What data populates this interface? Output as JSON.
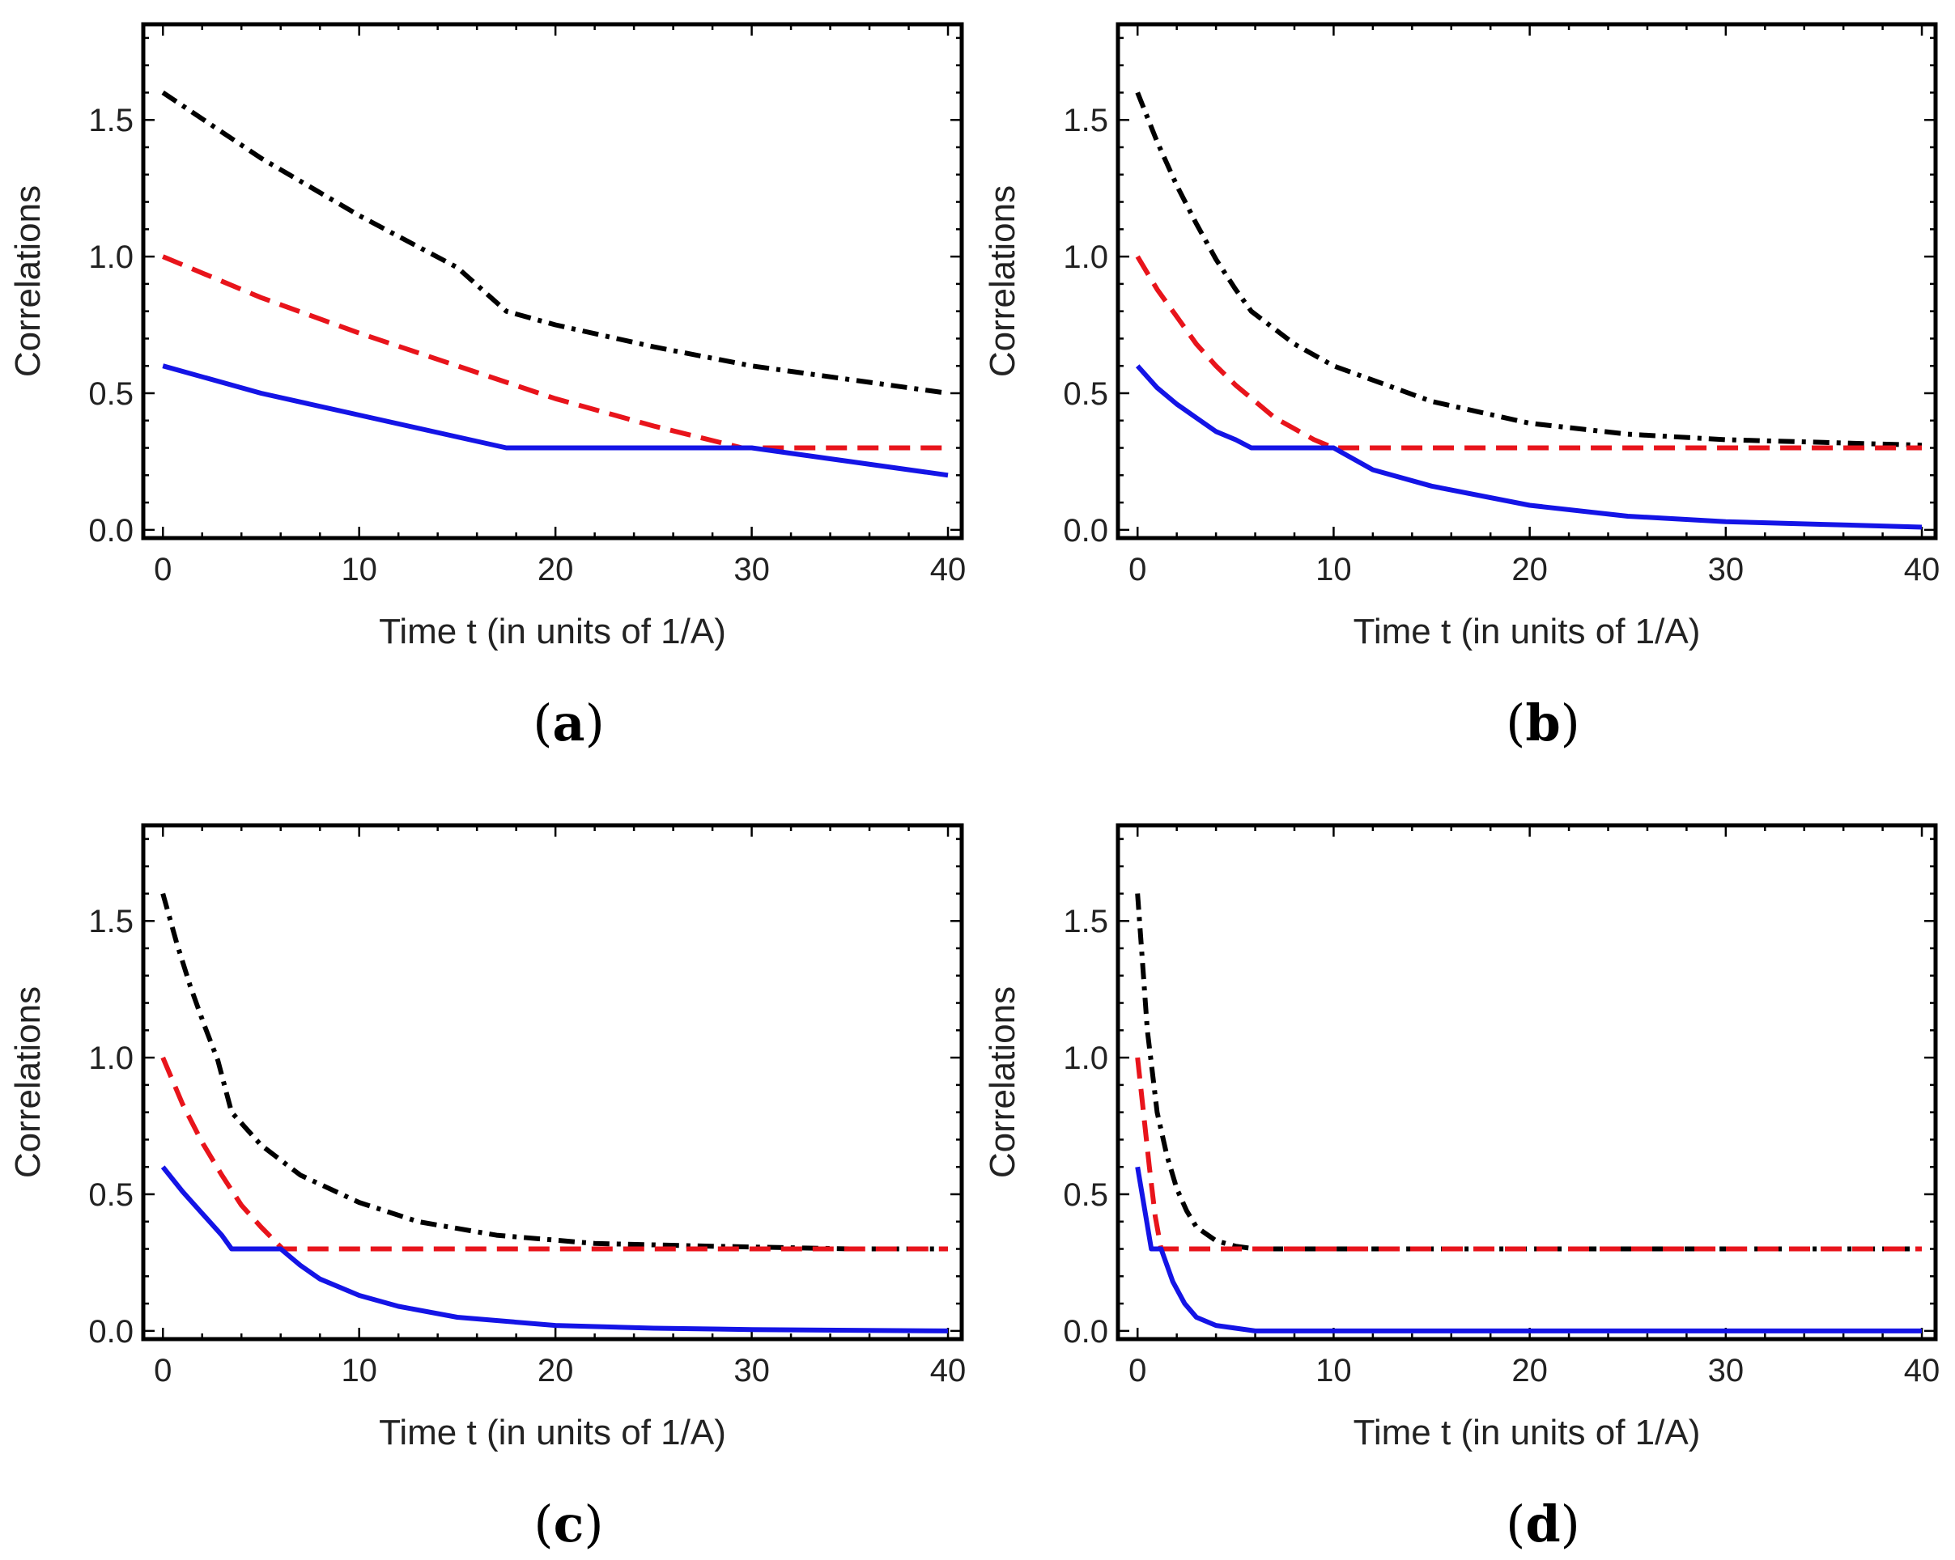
{
  "chart_data": [
    {
      "type": "line",
      "panel_label": "a",
      "xlabel": "Time t (in units of 1/A)",
      "ylabel": "Correlations",
      "xlim": [
        -1,
        40.7
      ],
      "ylim": [
        -0.03,
        1.85
      ],
      "x_ticks": [
        0,
        10,
        20,
        30,
        40
      ],
      "x_tick_labels": [
        "0",
        "10",
        "20",
        "30",
        "40"
      ],
      "y_ticks": [
        0,
        0.5,
        1,
        1.5
      ],
      "y_tick_labels": [
        "0.0",
        "0.5",
        "1.0",
        "1.5"
      ],
      "grid": false,
      "series": [
        {
          "style": "dash-dot",
          "color": "#000000",
          "x": [
            0,
            5,
            10,
            15,
            17.5,
            20,
            25,
            30,
            35,
            40
          ],
          "y": [
            1.6,
            1.36,
            1.15,
            0.96,
            0.8,
            0.75,
            0.67,
            0.6,
            0.55,
            0.5
          ]
        },
        {
          "style": "dashed",
          "color": "#e8141b",
          "x": [
            0,
            5,
            10,
            15,
            20,
            25,
            29.5,
            35,
            40
          ],
          "y": [
            1.0,
            0.85,
            0.72,
            0.6,
            0.48,
            0.38,
            0.3,
            0.3,
            0.3
          ]
        },
        {
          "style": "solid",
          "color": "#1414e6",
          "x": [
            0,
            5,
            10,
            15,
            17.5,
            25,
            30,
            35,
            40
          ],
          "y": [
            0.6,
            0.5,
            0.42,
            0.34,
            0.3,
            0.3,
            0.3,
            0.25,
            0.2
          ]
        }
      ]
    },
    {
      "type": "line",
      "panel_label": "b",
      "xlabel": "Time t (in units of 1/A)",
      "ylabel": "Correlations",
      "xlim": [
        -1,
        40.7
      ],
      "ylim": [
        -0.03,
        1.85
      ],
      "x_ticks": [
        0,
        10,
        20,
        30,
        40
      ],
      "x_tick_labels": [
        "0",
        "10",
        "20",
        "30",
        "40"
      ],
      "y_ticks": [
        0,
        0.5,
        1,
        1.5
      ],
      "y_tick_labels": [
        "0.0",
        "0.5",
        "1.0",
        "1.5"
      ],
      "grid": false,
      "series": [
        {
          "style": "dash-dot",
          "color": "#000000",
          "x": [
            0,
            1,
            2,
            3,
            4,
            5,
            5.8,
            8,
            10,
            15,
            20,
            25,
            30,
            35,
            40
          ],
          "y": [
            1.6,
            1.42,
            1.26,
            1.12,
            0.99,
            0.88,
            0.8,
            0.68,
            0.6,
            0.47,
            0.39,
            0.35,
            0.33,
            0.32,
            0.31
          ]
        },
        {
          "style": "dashed",
          "color": "#e8141b",
          "x": [
            0,
            1,
            2,
            3,
            4,
            5,
            6,
            7,
            8,
            9,
            10,
            20,
            30,
            40
          ],
          "y": [
            1.0,
            0.88,
            0.78,
            0.68,
            0.6,
            0.53,
            0.47,
            0.41,
            0.37,
            0.33,
            0.3,
            0.3,
            0.3,
            0.3
          ]
        },
        {
          "style": "solid",
          "color": "#1414e6",
          "x": [
            0,
            1,
            2,
            3,
            4,
            5,
            5.8,
            10,
            12,
            15,
            20,
            25,
            30,
            35,
            40
          ],
          "y": [
            0.6,
            0.52,
            0.46,
            0.41,
            0.36,
            0.33,
            0.3,
            0.3,
            0.22,
            0.16,
            0.09,
            0.05,
            0.03,
            0.02,
            0.01
          ]
        }
      ]
    },
    {
      "type": "line",
      "panel_label": "c",
      "xlabel": "Time t (in units of 1/A)",
      "ylabel": "Correlations",
      "xlim": [
        -1,
        40.7
      ],
      "ylim": [
        -0.03,
        1.85
      ],
      "x_ticks": [
        0,
        10,
        20,
        30,
        40
      ],
      "x_tick_labels": [
        "0",
        "10",
        "20",
        "30",
        "40"
      ],
      "y_ticks": [
        0,
        0.5,
        1,
        1.5
      ],
      "y_tick_labels": [
        "0.0",
        "0.5",
        "1.0",
        "1.5"
      ],
      "grid": false,
      "series": [
        {
          "style": "dash-dot",
          "color": "#000000",
          "x": [
            0,
            0.7,
            1.4,
            2.1,
            2.8,
            3.5,
            5,
            7,
            10,
            13,
            17,
            22,
            28,
            35,
            40
          ],
          "y": [
            1.6,
            1.42,
            1.26,
            1.12,
            0.99,
            0.8,
            0.68,
            0.57,
            0.47,
            0.4,
            0.35,
            0.32,
            0.31,
            0.3,
            0.3
          ]
        },
        {
          "style": "dashed",
          "color": "#e8141b",
          "x": [
            0,
            1,
            2,
            3,
            4,
            5,
            6.1,
            20,
            40
          ],
          "y": [
            1.0,
            0.83,
            0.69,
            0.57,
            0.46,
            0.38,
            0.3,
            0.3,
            0.3
          ]
        },
        {
          "style": "solid",
          "color": "#1414e6",
          "x": [
            0,
            1,
            2,
            3,
            3.5,
            6,
            7,
            8,
            10,
            12,
            15,
            20,
            25,
            30,
            40
          ],
          "y": [
            0.6,
            0.51,
            0.43,
            0.35,
            0.3,
            0.3,
            0.24,
            0.19,
            0.13,
            0.09,
            0.05,
            0.02,
            0.01,
            0.005,
            0.0
          ]
        }
      ]
    },
    {
      "type": "line",
      "panel_label": "d",
      "xlabel": "Time t (in units of 1/A)",
      "ylabel": "Correlations",
      "xlim": [
        -1,
        40.7
      ],
      "ylim": [
        -0.03,
        1.85
      ],
      "x_ticks": [
        0,
        10,
        20,
        30,
        40
      ],
      "x_tick_labels": [
        "0",
        "10",
        "20",
        "30",
        "40"
      ],
      "y_ticks": [
        0,
        0.5,
        1,
        1.5
      ],
      "y_tick_labels": [
        "0.0",
        "0.5",
        "1.0",
        "1.5"
      ],
      "grid": false,
      "series": [
        {
          "style": "dash-dot",
          "color": "#000000",
          "x": [
            0,
            0.25,
            0.5,
            0.75,
            1.0,
            1.5,
            2,
            2.5,
            3,
            4,
            5,
            6,
            40
          ],
          "y": [
            1.6,
            1.35,
            1.1,
            0.95,
            0.8,
            0.64,
            0.52,
            0.44,
            0.38,
            0.33,
            0.31,
            0.3,
            0.3
          ]
        },
        {
          "style": "dashed",
          "color": "#e8141b",
          "x": [
            0,
            0.3,
            0.6,
            0.9,
            1.2,
            40
          ],
          "y": [
            1.0,
            0.8,
            0.6,
            0.42,
            0.3,
            0.3
          ]
        },
        {
          "style": "solid",
          "color": "#1414e6",
          "x": [
            0,
            0.35,
            0.7,
            1.2,
            1.8,
            2.4,
            3,
            4,
            5,
            6,
            40
          ],
          "y": [
            0.6,
            0.45,
            0.3,
            0.3,
            0.18,
            0.1,
            0.05,
            0.02,
            0.01,
            0.0,
            0.0
          ]
        }
      ]
    }
  ]
}
